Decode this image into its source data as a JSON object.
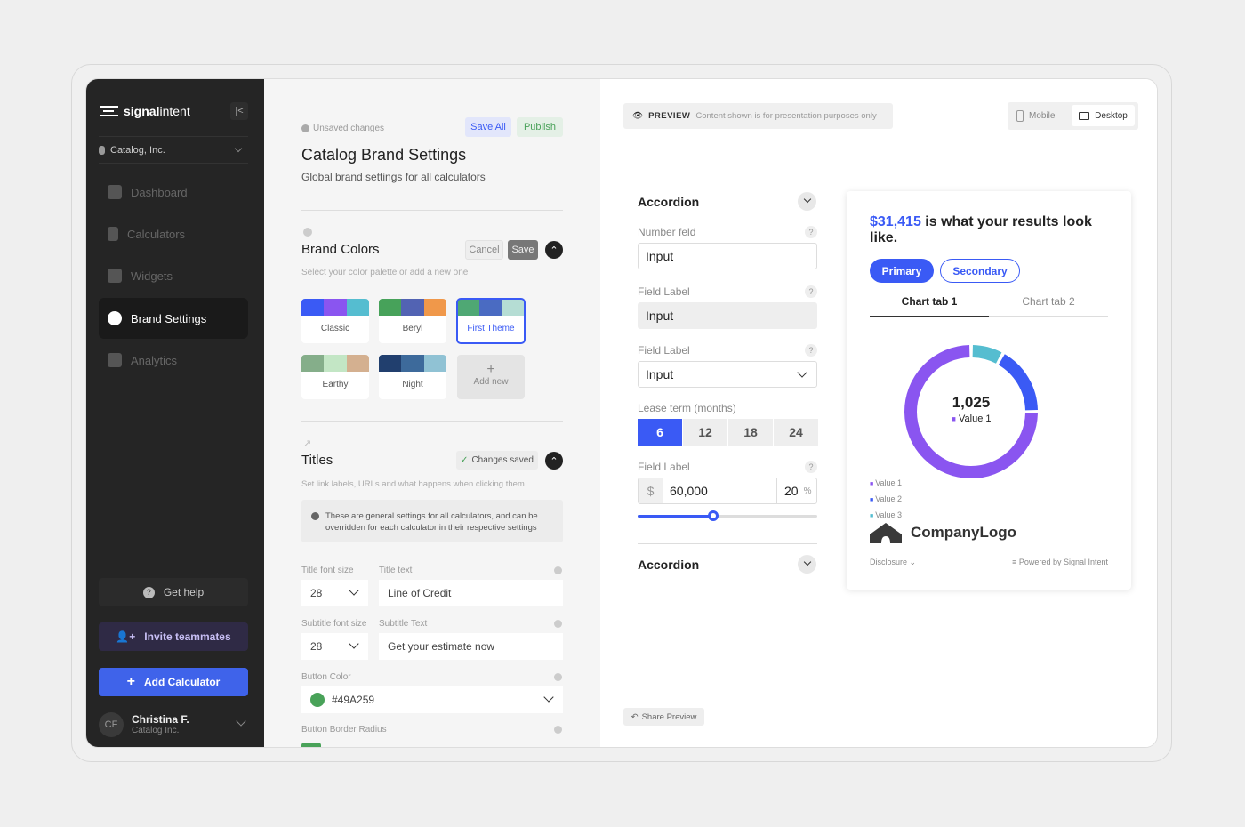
{
  "sidebar": {
    "brand_bold": "signal",
    "brand_light": "intent",
    "org": "Catalog, Inc.",
    "items": [
      {
        "label": "Dashboard",
        "icon": "home-icon"
      },
      {
        "label": "Calculators",
        "icon": "calculator-icon"
      },
      {
        "label": "Widgets",
        "icon": "plus-square-icon"
      },
      {
        "label": "Brand Settings",
        "icon": "palette-icon",
        "active": true
      },
      {
        "label": "Analytics",
        "icon": "bar-chart-icon"
      }
    ],
    "get_help": "Get help",
    "invite": "Invite teammates",
    "add_calculator": "Add Calculator",
    "user": {
      "initials": "CF",
      "name": "Christina F.",
      "org": "Catalog Inc."
    }
  },
  "settings": {
    "unsaved": "Unsaved changes",
    "save_all": "Save All",
    "publish": "Publish",
    "title": "Catalog Brand Settings",
    "subtitle": "Global brand settings for all calculators",
    "brand_colors": {
      "title": "Brand Colors",
      "desc": "Select your color palette or add a new one",
      "cancel": "Cancel",
      "save": "Save",
      "palettes": [
        {
          "name": "Classic",
          "colors": [
            "#3a5af5",
            "#8a55f0",
            "#55bdd0"
          ]
        },
        {
          "name": "Beryl",
          "colors": [
            "#47a25a",
            "#5263b3",
            "#f0984a"
          ]
        },
        {
          "name": "First Theme",
          "colors": [
            "#4fa874",
            "#4a6bc2",
            "#b5ddd4"
          ],
          "selected": true
        },
        {
          "name": "Earthy",
          "colors": [
            "#85ae8a",
            "#c3e6c5",
            "#d4b090"
          ]
        },
        {
          "name": "Night",
          "colors": [
            "#213f6e",
            "#3d6a9b",
            "#90c2d4"
          ]
        }
      ],
      "add_new": "Add new"
    },
    "titles": {
      "title": "Titles",
      "status": "Changes saved",
      "desc": "Set link labels, URLs and what happens when clicking them",
      "note": "These are general settings for all calculators, and can be overridden for each calculator in their respective settings",
      "title_font_label": "Title font size",
      "title_font": "28",
      "title_text_label": "Title text",
      "title_text": "Line of Credit",
      "subtitle_font_label": "Subtitle font size",
      "subtitle_font": "28",
      "subtitle_text_label": "Subtitle Text",
      "subtitle_text": "Get your estimate now",
      "button_color_label": "Button Color",
      "button_color": "#49A259",
      "radius_label": "Button Border Radius"
    }
  },
  "preview": {
    "badge": "PREVIEW",
    "notice": "Content shown is for presentation purposes only",
    "mobile": "Mobile",
    "desktop": "Desktop",
    "share": "Share Preview",
    "form": {
      "accordion1": "Accordion",
      "number_label": "Number feld",
      "number_value": "Input",
      "field2_label": "Field Label",
      "field2_value": "Input",
      "field3_label": "Field Label",
      "field3_value": "Input",
      "lease_label": "Lease term (months)",
      "lease_options": [
        "6",
        "12",
        "18",
        "24"
      ],
      "lease_selected": "6",
      "field4_label": "Field Label",
      "currency": "$",
      "amount": "60,000",
      "percent": "20",
      "percent_sign": "%",
      "slider_fraction": 0.42,
      "accordion2": "Accordion"
    },
    "result": {
      "amount": "$31,415",
      "text": " is what your results look like.",
      "primary": "Primary",
      "secondary": "Secondary",
      "tab1": "Chart tab 1",
      "tab2": "Chart tab 2",
      "logo": "CompanyLogo",
      "disclosure": "Disclosure",
      "powered": "Powered by Signal Intent"
    }
  },
  "chart_data": {
    "type": "pie",
    "center_value": "1,025",
    "center_label": "Value 1",
    "series": [
      {
        "name": "Value 1",
        "value": 75,
        "color": "#8a55f0"
      },
      {
        "name": "Value 2",
        "value": 17,
        "color": "#3a5af5"
      },
      {
        "name": "Value 3",
        "value": 8,
        "color": "#55bdd0"
      }
    ]
  },
  "colors": {
    "accent": "#3a5af5",
    "sidebar": "#252525"
  }
}
